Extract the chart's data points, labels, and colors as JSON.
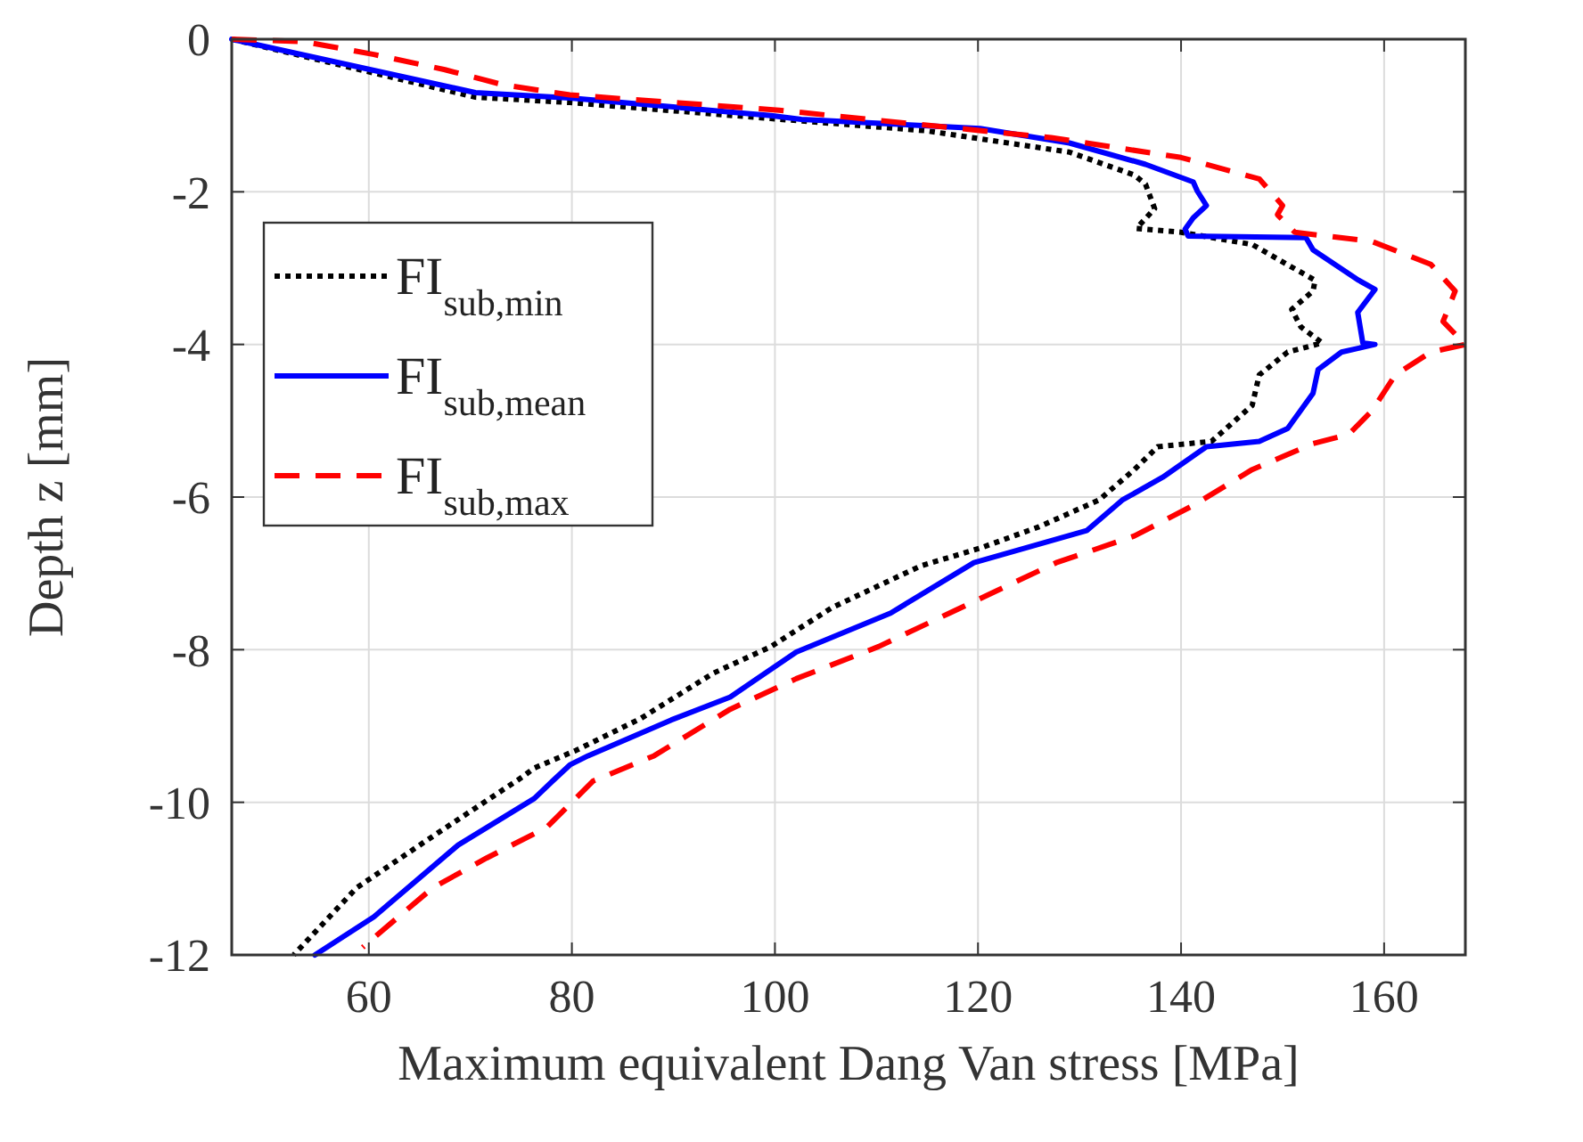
{
  "chart_data": {
    "type": "line",
    "xlabel": "Maximum equivalent Dang Van stress [MPa]",
    "ylabel": "Depth z [mm]",
    "xlim": [
      46.5,
      168
    ],
    "ylim": [
      -12,
      0
    ],
    "xticks": [
      60,
      80,
      100,
      120,
      140,
      160
    ],
    "yticks": [
      0,
      -2,
      -4,
      -6,
      -8,
      -10,
      -12
    ],
    "grid": true,
    "legend": "top left",
    "series": [
      {
        "name": "FI$_{sub,min}$",
        "color": "#000000",
        "line_style": "dotted",
        "x": [
          46.5,
          70.5,
          79.8,
          99.6,
          114.9,
          129,
          135.4,
          136.5,
          137.4,
          135.6,
          140,
          147,
          153.2,
          153,
          150.9,
          151.8,
          153.9,
          150.5,
          147.7,
          147,
          143,
          137.7,
          135.4,
          131.9,
          126,
          120.2,
          114.4,
          105.6,
          99.6,
          93.9,
          86.8,
          80.4,
          76.3,
          75.1,
          65.8,
          58.8,
          52.6
        ],
        "values": [
          0,
          -0.76,
          -0.83,
          -1.04,
          -1.2,
          -1.48,
          -1.78,
          -1.9,
          -2.22,
          -2.48,
          -2.53,
          -2.69,
          -3.16,
          -3.3,
          -3.54,
          -3.77,
          -3.98,
          -4.1,
          -4.4,
          -4.8,
          -5.27,
          -5.34,
          -5.64,
          -6.04,
          -6.39,
          -6.67,
          -6.9,
          -7.45,
          -7.96,
          -8.31,
          -8.9,
          -9.32,
          -9.55,
          -9.67,
          -10.49,
          -11.12,
          -12
        ]
      },
      {
        "name": "FI$_{sub,mean}$",
        "color": "#0000ff",
        "line_style": "solid",
        "x": [
          46.5,
          70.5,
          79.8,
          99.6,
          102.6,
          120.2,
          129,
          136.5,
          141.2,
          141.6,
          142.5,
          141.2,
          140.4,
          140.7,
          152.3,
          153,
          157.5,
          159.1,
          157.4,
          157.9,
          159.1,
          155.8,
          153.5,
          153,
          150.5,
          147.7,
          142.5,
          138.2,
          134.2,
          130.7,
          119.6,
          111.4,
          102.1,
          95.6,
          89.8,
          81.6,
          79.8,
          78.1,
          76.3,
          68.8,
          60.5,
          54.7
        ],
        "values": [
          0,
          -0.7,
          -0.77,
          -1,
          -1.05,
          -1.17,
          -1.36,
          -1.64,
          -1.87,
          -1.99,
          -2.18,
          -2.34,
          -2.49,
          -2.58,
          -2.6,
          -2.76,
          -3.16,
          -3.28,
          -3.58,
          -3.98,
          -4,
          -4.1,
          -4.33,
          -4.64,
          -5.1,
          -5.27,
          -5.34,
          -5.74,
          -6.04,
          -6.44,
          -6.86,
          -7.52,
          -8.03,
          -8.62,
          -8.92,
          -9.39,
          -9.51,
          -9.72,
          -9.95,
          -10.56,
          -11.5,
          -12
        ]
      },
      {
        "name": "FI$_{sub,max}$",
        "color": "#ff0000",
        "line_style": "dashed",
        "x": [
          46.5,
          53.5,
          60.5,
          67.5,
          73.3,
          79.8,
          100.4,
          114.4,
          127.2,
          140,
          147.7,
          150,
          149.5,
          151.2,
          158.8,
          164.6,
          167,
          165.8,
          168,
          164.6,
          161.1,
          158.8,
          156.5,
          153,
          147,
          141.2,
          135.4,
          127.7,
          117.2,
          110.2,
          102.1,
          95.6,
          88.1,
          82.1,
          77.5,
          71.6,
          66.3,
          60,
          59.4
        ],
        "values": [
          0,
          -0.03,
          -0.2,
          -0.4,
          -0.6,
          -0.73,
          -0.93,
          -1.12,
          -1.29,
          -1.55,
          -1.83,
          -2.18,
          -2.3,
          -2.53,
          -2.65,
          -2.95,
          -3.3,
          -3.7,
          -4,
          -4.1,
          -4.4,
          -4.87,
          -5.18,
          -5.3,
          -5.64,
          -6.11,
          -6.51,
          -6.86,
          -7.52,
          -7.96,
          -8.38,
          -8.78,
          -9.39,
          -9.72,
          -10.33,
          -10.73,
          -11.12,
          -11.83,
          -11.9
        ]
      }
    ]
  }
}
